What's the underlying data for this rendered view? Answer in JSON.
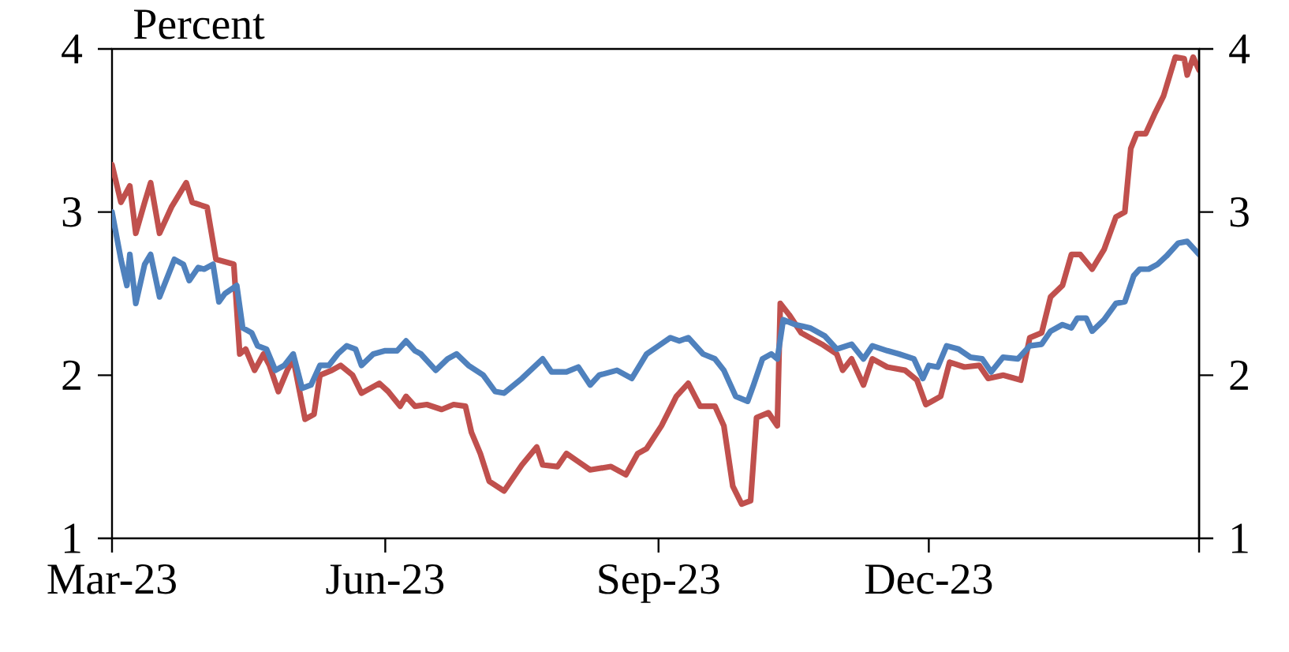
{
  "chart_data": {
    "type": "line",
    "ylabel": "Percent",
    "xlim": [
      "2023-03-01",
      "2024-03-01"
    ],
    "xticks": [
      {
        "value": "2023-03-01",
        "label": "Mar-23"
      },
      {
        "value": "2023-06-01",
        "label": "Jun-23"
      },
      {
        "value": "2023-09-01",
        "label": "Sep-23"
      },
      {
        "value": "2023-12-01",
        "label": "Dec-23"
      },
      {
        "value": "2024-03-01",
        "label": null
      }
    ],
    "ylim": [
      1,
      4
    ],
    "yticks": [
      1,
      2,
      3,
      4
    ],
    "y2lim": [
      1,
      4
    ],
    "y2ticks": [
      1,
      2,
      3,
      4
    ],
    "series": [
      {
        "color": "#c0504d",
        "x": [
          "2023-03-01",
          "2023-03-04",
          "2023-03-07",
          "2023-03-09",
          "2023-03-12",
          "2023-03-14",
          "2023-03-17",
          "2023-03-21",
          "2023-03-26",
          "2023-03-28",
          "2023-04-02",
          "2023-04-05",
          "2023-04-11",
          "2023-04-13",
          "2023-04-15",
          "2023-04-18",
          "2023-04-21",
          "2023-04-23",
          "2023-04-26",
          "2023-04-29",
          "2023-05-01",
          "2023-05-05",
          "2023-05-08",
          "2023-05-10",
          "2023-05-14",
          "2023-05-17",
          "2023-05-21",
          "2023-05-24",
          "2023-05-30",
          "2023-06-02",
          "2023-06-06",
          "2023-06-08",
          "2023-06-11",
          "2023-06-15",
          "2023-06-20",
          "2023-06-24",
          "2023-06-28",
          "2023-06-30",
          "2023-07-03",
          "2023-07-06",
          "2023-07-11",
          "2023-07-17",
          "2023-07-22",
          "2023-07-24",
          "2023-07-29",
          "2023-08-01",
          "2023-08-05",
          "2023-08-09",
          "2023-08-16",
          "2023-08-21",
          "2023-08-25",
          "2023-08-28",
          "2023-09-02",
          "2023-09-07",
          "2023-09-11",
          "2023-09-15",
          "2023-09-20",
          "2023-09-23",
          "2023-09-26",
          "2023-09-29",
          "2023-10-02",
          "2023-10-04",
          "2023-10-08",
          "2023-10-11",
          "2023-10-12",
          "2023-10-15",
          "2023-10-19",
          "2023-10-26",
          "2023-10-31",
          "2023-11-02",
          "2023-11-05",
          "2023-11-09",
          "2023-11-12",
          "2023-11-17",
          "2023-11-23",
          "2023-11-27",
          "2023-11-30",
          "2023-12-05",
          "2023-12-08",
          "2023-12-13",
          "2023-12-18",
          "2023-12-21",
          "2023-12-26",
          "2024-01-01",
          "2024-01-04",
          "2024-01-08",
          "2024-01-11",
          "2024-01-15",
          "2024-01-18",
          "2024-01-21",
          "2024-01-25",
          "2024-01-29",
          "2024-02-02",
          "2024-02-05",
          "2024-02-07",
          "2024-02-09",
          "2024-02-12",
          "2024-02-15",
          "2024-02-18",
          "2024-02-22",
          "2024-02-25",
          "2024-02-26",
          "2024-02-28",
          "2024-03-01"
        ],
        "values": [
          3.29,
          3.06,
          3.16,
          2.87,
          3.06,
          3.18,
          2.87,
          3.03,
          3.18,
          3.06,
          3.03,
          2.71,
          2.68,
          2.13,
          2.16,
          2.03,
          2.13,
          2.06,
          1.9,
          2.03,
          2.1,
          1.73,
          1.76,
          2.0,
          2.03,
          2.06,
          2.0,
          1.89,
          1.95,
          1.9,
          1.81,
          1.87,
          1.81,
          1.82,
          1.79,
          1.82,
          1.81,
          1.65,
          1.52,
          1.35,
          1.29,
          1.45,
          1.56,
          1.45,
          1.44,
          1.52,
          1.47,
          1.42,
          1.44,
          1.39,
          1.52,
          1.55,
          1.69,
          1.87,
          1.95,
          1.81,
          1.81,
          1.69,
          1.32,
          1.21,
          1.23,
          1.74,
          1.77,
          1.69,
          2.44,
          2.37,
          2.26,
          2.19,
          2.13,
          2.03,
          2.1,
          1.94,
          2.1,
          2.05,
          2.03,
          1.97,
          1.82,
          1.87,
          2.08,
          2.05,
          2.06,
          1.98,
          2.0,
          1.97,
          2.23,
          2.26,
          2.48,
          2.55,
          2.74,
          2.74,
          2.65,
          2.77,
          2.97,
          3.0,
          3.39,
          3.48,
          3.48,
          3.6,
          3.71,
          3.95,
          3.94,
          3.84,
          3.95,
          3.87
        ]
      },
      {
        "color": "#4f81bd",
        "x": [
          "2023-03-01",
          "2023-03-04",
          "2023-03-06",
          "2023-03-07",
          "2023-03-09",
          "2023-03-12",
          "2023-03-14",
          "2023-03-17",
          "2023-03-22",
          "2023-03-25",
          "2023-03-27",
          "2023-03-30",
          "2023-04-01",
          "2023-04-04",
          "2023-04-06",
          "2023-04-08",
          "2023-04-12",
          "2023-04-14",
          "2023-04-17",
          "2023-04-19",
          "2023-04-22",
          "2023-04-25",
          "2023-04-28",
          "2023-05-01",
          "2023-05-04",
          "2023-05-07",
          "2023-05-10",
          "2023-05-13",
          "2023-05-16",
          "2023-05-19",
          "2023-05-22",
          "2023-05-24",
          "2023-05-28",
          "2023-06-01",
          "2023-06-05",
          "2023-06-08",
          "2023-06-11",
          "2023-06-13",
          "2023-06-18",
          "2023-06-22",
          "2023-06-25",
          "2023-06-29",
          "2023-07-04",
          "2023-07-08",
          "2023-07-11",
          "2023-07-17",
          "2023-07-24",
          "2023-07-27",
          "2023-08-01",
          "2023-08-05",
          "2023-08-09",
          "2023-08-12",
          "2023-08-18",
          "2023-08-23",
          "2023-08-28",
          "2023-09-01",
          "2023-09-05",
          "2023-09-08",
          "2023-09-11",
          "2023-09-16",
          "2023-09-20",
          "2023-09-23",
          "2023-09-27",
          "2023-10-01",
          "2023-10-03",
          "2023-10-06",
          "2023-10-09",
          "2023-10-11",
          "2023-10-13",
          "2023-10-17",
          "2023-10-22",
          "2023-10-27",
          "2023-10-31",
          "2023-11-05",
          "2023-11-09",
          "2023-11-12",
          "2023-11-17",
          "2023-11-21",
          "2023-11-26",
          "2023-11-29",
          "2023-12-01",
          "2023-12-04",
          "2023-12-07",
          "2023-12-11",
          "2023-12-15",
          "2023-12-19",
          "2023-12-22",
          "2023-12-26",
          "2023-12-31",
          "2024-01-04",
          "2024-01-08",
          "2024-01-11",
          "2024-01-15",
          "2024-01-18",
          "2024-01-20",
          "2024-01-23",
          "2024-01-25",
          "2024-01-29",
          "2024-02-02",
          "2024-02-05",
          "2024-02-08",
          "2024-02-10",
          "2024-02-13",
          "2024-02-16",
          "2024-02-19",
          "2024-02-23",
          "2024-02-26",
          "2024-03-01"
        ],
        "values": [
          3.0,
          2.71,
          2.55,
          2.74,
          2.44,
          2.68,
          2.74,
          2.48,
          2.71,
          2.68,
          2.58,
          2.66,
          2.65,
          2.68,
          2.45,
          2.5,
          2.55,
          2.29,
          2.26,
          2.18,
          2.16,
          2.03,
          2.06,
          2.13,
          1.92,
          1.94,
          2.06,
          2.06,
          2.13,
          2.18,
          2.16,
          2.06,
          2.13,
          2.15,
          2.15,
          2.21,
          2.15,
          2.13,
          2.03,
          2.1,
          2.13,
          2.06,
          2.0,
          1.9,
          1.89,
          1.98,
          2.1,
          2.02,
          2.02,
          2.05,
          1.94,
          2.0,
          2.03,
          1.98,
          2.13,
          2.18,
          2.23,
          2.21,
          2.23,
          2.13,
          2.1,
          2.03,
          1.87,
          1.84,
          1.94,
          2.1,
          2.13,
          2.1,
          2.34,
          2.31,
          2.29,
          2.24,
          2.16,
          2.19,
          2.1,
          2.18,
          2.15,
          2.13,
          2.1,
          1.98,
          2.06,
          2.05,
          2.18,
          2.16,
          2.11,
          2.1,
          2.02,
          2.11,
          2.1,
          2.18,
          2.19,
          2.27,
          2.31,
          2.29,
          2.35,
          2.35,
          2.27,
          2.34,
          2.44,
          2.45,
          2.61,
          2.65,
          2.65,
          2.68,
          2.73,
          2.81,
          2.82,
          2.74
        ]
      }
    ]
  }
}
